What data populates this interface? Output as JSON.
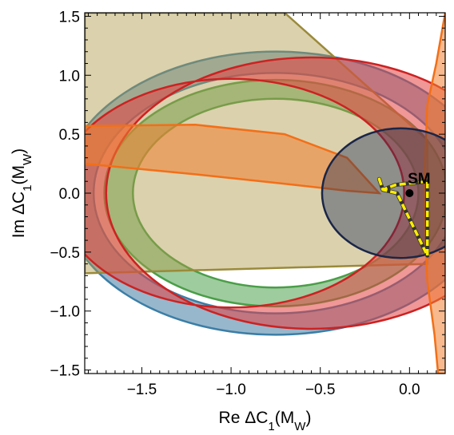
{
  "chart_data": {
    "type": "area",
    "xlabel": {
      "prefix": "Re ΔC",
      "sub": "1",
      "mid": "(M",
      "sub2": "W",
      "end": ")"
    },
    "ylabel": {
      "prefix": "Im ΔC",
      "sub": "1",
      "mid": "(M",
      "sub2": "W",
      "end": ")"
    },
    "xlim": [
      -1.82,
      0.2
    ],
    "ylim": [
      -1.53,
      1.53
    ],
    "xticks": [
      -1.5,
      -1.0,
      -0.5,
      0.0
    ],
    "xtick_labels": [
      "−1.5",
      "−1.0",
      "−0.5",
      "0.0"
    ],
    "yticks": [
      -1.5,
      -1.0,
      -0.5,
      0.0,
      0.5,
      1.0,
      1.5
    ],
    "ytick_labels": [
      "−1.5",
      "−1.0",
      "−0.5",
      "0.0",
      "0.5",
      "1.0",
      "1.5"
    ],
    "grid": false,
    "legend": "none",
    "regions": [
      {
        "shape": "annulus",
        "center": [
          -0.75,
          0.0
        ],
        "r_outer": 1.2,
        "r_inner": 1.02,
        "fill": "#2f6f99",
        "stroke": "#3b7ea6",
        "opacity": 0.5
      },
      {
        "shape": "annulus",
        "center": [
          -0.75,
          0.0
        ],
        "r_outer": 0.96,
        "r_inner": 0.8,
        "fill": "#3e9a3e",
        "stroke": "#4a9e48",
        "opacity": 0.5
      },
      {
        "shape": "wedge",
        "vertices": [
          [
            -1.82,
            1.53
          ],
          [
            -0.7,
            1.53
          ],
          [
            0.1,
            0.45
          ],
          [
            0.1,
            -0.6
          ],
          [
            -1.82,
            -0.68
          ]
        ],
        "fill": "#b09a4a",
        "stroke": "#9a8a3a",
        "opacity": 0.45
      },
      {
        "shape": "band",
        "outer_center": [
          -0.55,
          0.0
        ],
        "outer_r": 1.15,
        "inner_center": [
          -1.0,
          0.0
        ],
        "inner_r": 0.97,
        "fill": "#e34242",
        "stroke": "#cc2222",
        "opacity": 0.55
      },
      {
        "shape": "hyperbola-band",
        "curves": [
          [
            [
              -1.82,
              0.57
            ],
            [
              -1.2,
              0.58
            ],
            [
              -0.7,
              0.5
            ],
            [
              -0.35,
              0.3
            ],
            [
              -0.2,
              0.05
            ],
            [
              -0.17,
              0.0
            ]
          ],
          [
            [
              -1.82,
              0.25
            ],
            [
              -1.2,
              0.16
            ],
            [
              -0.7,
              0.08
            ],
            [
              -0.35,
              0.02
            ],
            [
              -0.17,
              0.0
            ]
          ],
          [
            [
              0.2,
              1.53
            ],
            [
              0.15,
              1.1
            ],
            [
              0.1,
              0.75
            ],
            [
              0.08,
              0.0
            ],
            [
              0.1,
              -0.75
            ],
            [
              0.14,
              -1.2
            ],
            [
              0.16,
              -1.53
            ]
          ]
        ],
        "fill": "#f08030",
        "stroke": "#f26f18",
        "opacity": 0.55
      },
      {
        "shape": "ellipse",
        "center": [
          -0.05,
          0.0
        ],
        "rx": 0.44,
        "ry": 0.55,
        "fill": "#1b2a55",
        "stroke": "#1a2648",
        "opacity": 0.4
      },
      {
        "shape": "polygon-dashed",
        "vertices": [
          [
            -0.17,
            0.12
          ],
          [
            -0.15,
            0.03
          ],
          [
            -0.08,
            0.07
          ],
          [
            0.1,
            0.1
          ],
          [
            0.1,
            -0.53
          ],
          [
            -0.07,
            0.0
          ],
          [
            -0.15,
            0.03
          ]
        ],
        "stroke": "#ffee00",
        "dash_stroke": "#333333"
      }
    ],
    "points": [
      {
        "label": "SM",
        "x": 0.0,
        "y": 0.0,
        "color": "#000000"
      }
    ]
  }
}
